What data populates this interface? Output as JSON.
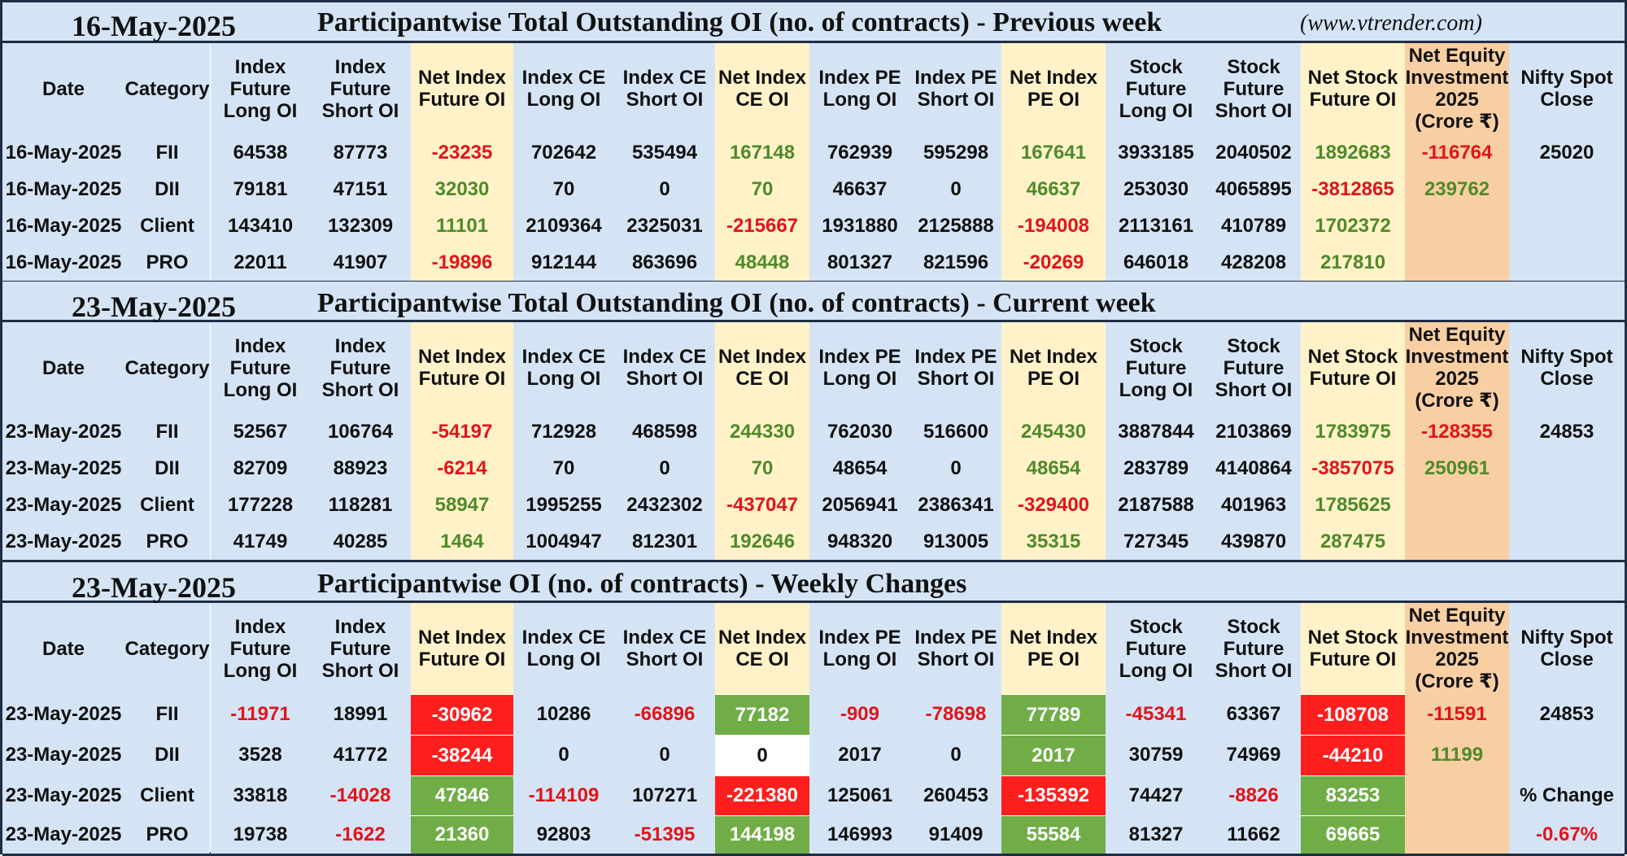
{
  "site": "(www.vtrender.com)",
  "headers": [
    "Date",
    "Category",
    "Index Future Long OI",
    "Index Future Short OI",
    "Net Index Future OI",
    "Index CE Long OI",
    "Index CE Short OI",
    "Net Index CE OI",
    "Index PE Long OI",
    "Index PE Short OI",
    "Net Index PE OI",
    "Stock Future Long OI",
    "Stock Future Short OI",
    "Net Stock Future OI",
    "Net Equity Investment 2025 (Crore ₹)",
    "Nifty Spot Close"
  ],
  "colors": {
    "header_bg": "#d5e4f5",
    "net_col_bg": "#fff2c9",
    "equity_col_bg": "#f8cfa3",
    "negative_text": "#e1141b",
    "positive_text": "#4f8a2a",
    "negative_fill": "#ff1e1e",
    "positive_fill": "#70ad47"
  },
  "sections": [
    {
      "date": "16-May-2025",
      "title": "Participantwise Total Outstanding OI (no. of contracts) - Previous week",
      "rows": [
        [
          "16-May-2025",
          "FII",
          "64538",
          "87773",
          "-23235",
          "702642",
          "535494",
          "167148",
          "762939",
          "595298",
          "167641",
          "3933185",
          "2040502",
          "1892683",
          "-116764",
          "25020"
        ],
        [
          "16-May-2025",
          "DII",
          "79181",
          "47151",
          "32030",
          "70",
          "0",
          "70",
          "46637",
          "0",
          "46637",
          "253030",
          "4065895",
          "-3812865",
          "239762",
          ""
        ],
        [
          "16-May-2025",
          "Client",
          "143410",
          "132309",
          "11101",
          "2109364",
          "2325031",
          "-215667",
          "1931880",
          "2125888",
          "-194008",
          "2113161",
          "410789",
          "1702372",
          "",
          ""
        ],
        [
          "16-May-2025",
          "PRO",
          "22011",
          "41907",
          "-19896",
          "912144",
          "863696",
          "48448",
          "801327",
          "821596",
          "-20269",
          "646018",
          "428208",
          "217810",
          "",
          ""
        ]
      ]
    },
    {
      "date": "23-May-2025",
      "title": "Participantwise Total Outstanding OI (no. of contracts) - Current week",
      "rows": [
        [
          "23-May-2025",
          "FII",
          "52567",
          "106764",
          "-54197",
          "712928",
          "468598",
          "244330",
          "762030",
          "516600",
          "245430",
          "3887844",
          "2103869",
          "1783975",
          "-128355",
          "24853"
        ],
        [
          "23-May-2025",
          "DII",
          "82709",
          "88923",
          "-6214",
          "70",
          "0",
          "70",
          "48654",
          "0",
          "48654",
          "283789",
          "4140864",
          "-3857075",
          "250961",
          ""
        ],
        [
          "23-May-2025",
          "Client",
          "177228",
          "118281",
          "58947",
          "1995255",
          "2432302",
          "-437047",
          "2056941",
          "2386341",
          "-329400",
          "2187588",
          "401963",
          "1785625",
          "",
          ""
        ],
        [
          "23-May-2025",
          "PRO",
          "41749",
          "40285",
          "1464",
          "1004947",
          "812301",
          "192646",
          "948320",
          "913005",
          "35315",
          "727345",
          "439870",
          "287475",
          "",
          ""
        ]
      ]
    },
    {
      "date": "23-May-2025",
      "title": "Participantwise OI (no. of contracts) - Weekly Changes",
      "rows": [
        [
          "23-May-2025",
          "FII",
          "-11971",
          "18991",
          "-30962",
          "10286",
          "-66896",
          "77182",
          "-909",
          "-78698",
          "77789",
          "-45341",
          "63367",
          "-108708",
          "-11591",
          "24853"
        ],
        [
          "23-May-2025",
          "DII",
          "3528",
          "41772",
          "-38244",
          "0",
          "0",
          "0",
          "2017",
          "0",
          "2017",
          "30759",
          "74969",
          "-44210",
          "11199",
          ""
        ],
        [
          "23-May-2025",
          "Client",
          "33818",
          "-14028",
          "47846",
          "-114109",
          "107271",
          "-221380",
          "125061",
          "260453",
          "-135392",
          "74427",
          "-8826",
          "83253",
          "",
          "% Change"
        ],
        [
          "23-May-2025",
          "PRO",
          "19738",
          "-1622",
          "21360",
          "92803",
          "-51395",
          "144198",
          "146993",
          "91409",
          "55584",
          "81327",
          "11662",
          "69665",
          "",
          "-0.67%"
        ]
      ]
    }
  ]
}
